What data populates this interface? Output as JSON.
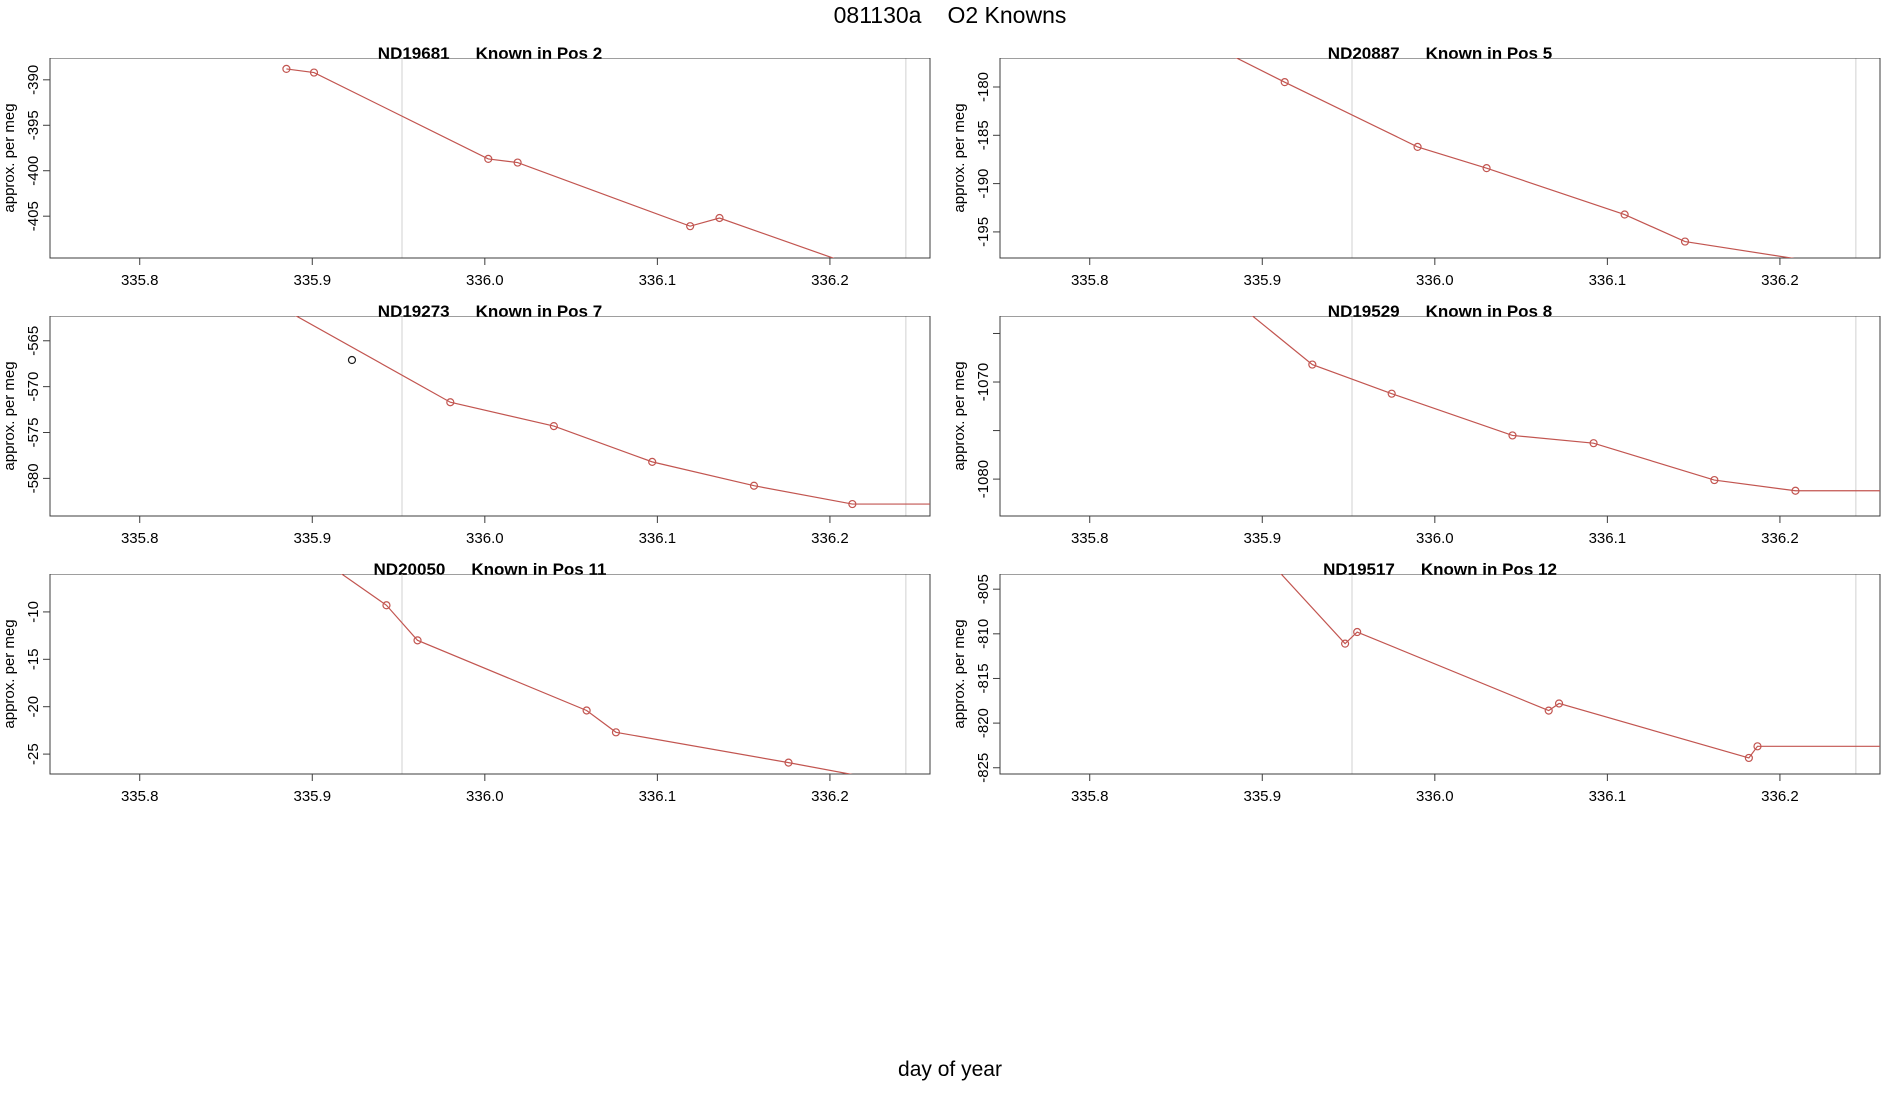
{
  "header": {
    "run_label": "081130a",
    "title": "O2 Knowns"
  },
  "footer": {
    "xlabel": "day of year"
  },
  "chart_data": {
    "type": "line",
    "title": "081130a  O2 Knowns",
    "xlabel": "day of year",
    "ylabel": "approx. per meg",
    "legend": "none",
    "grid": "off",
    "style": {
      "series_color": "#c25550",
      "outlier_color": "#1a1a1a",
      "ref_line_color": "#d8d8d8",
      "box_color": "#3c3c3c",
      "marker": "open-circle"
    },
    "x_axis": {
      "xlim": [
        335.748,
        336.258
      ],
      "ticks": [
        {
          "v": 335.8,
          "label": "335.8"
        },
        {
          "v": 335.9,
          "label": "335.9"
        },
        {
          "v": 336.0,
          "label": "336.0"
        },
        {
          "v": 336.1,
          "label": "336.1"
        },
        {
          "v": 336.2,
          "label": "336.2"
        }
      ]
    },
    "reference_lines_x": [
      335.952,
      336.244
    ],
    "panels": [
      {
        "id": "ND19681",
        "subtitle": "Known in Pos 2",
        "ylabel": "approx. per meg",
        "ylim": [
          -409.6,
          -387.6
        ],
        "yticks": [
          {
            "v": -390,
            "label": "-390"
          },
          {
            "v": -395,
            "label": "-395"
          },
          {
            "v": -400,
            "label": "-400"
          },
          {
            "v": -405,
            "label": "-405"
          }
        ],
        "markers": [
          [
            335.885,
            -388.8
          ],
          [
            335.901,
            -389.2
          ],
          [
            336.002,
            -398.7
          ],
          [
            336.019,
            -399.1
          ],
          [
            336.119,
            -406.1
          ],
          [
            336.136,
            -405.2
          ]
        ],
        "black_markers": [],
        "line": [
          [
            335.885,
            -388.8
          ],
          [
            335.901,
            -389.2
          ],
          [
            336.002,
            -398.7
          ],
          [
            336.019,
            -399.1
          ],
          [
            336.119,
            -406.1
          ],
          [
            336.136,
            -405.2
          ],
          [
            336.26,
            -413.5
          ]
        ]
      },
      {
        "id": "ND20887",
        "subtitle": "Known in Pos 5",
        "ylabel": "approx. per meg",
        "ylim": [
          -197.7,
          -177.0
        ],
        "yticks": [
          {
            "v": -180,
            "label": "-180"
          },
          {
            "v": -185,
            "label": "-185"
          },
          {
            "v": -190,
            "label": "-190"
          },
          {
            "v": -195,
            "label": "-195"
          }
        ],
        "markers": [
          [
            335.913,
            -179.5
          ],
          [
            335.99,
            -186.2
          ],
          [
            336.03,
            -188.4
          ],
          [
            336.11,
            -193.2
          ],
          [
            336.145,
            -196.0
          ]
        ],
        "black_markers": [],
        "line": [
          [
            335.855,
            -174.3
          ],
          [
            335.913,
            -179.5
          ],
          [
            335.99,
            -186.2
          ],
          [
            336.03,
            -188.4
          ],
          [
            336.11,
            -193.2
          ],
          [
            336.145,
            -196.0
          ],
          [
            336.21,
            -197.8
          ],
          [
            336.258,
            -198.3
          ]
        ]
      },
      {
        "id": "ND19273",
        "subtitle": "Known in Pos 7",
        "ylabel": "approx. per meg",
        "ylim": [
          -584.1,
          -562.3
        ],
        "yticks": [
          {
            "v": -565,
            "label": "-565"
          },
          {
            "v": -570,
            "label": "-570"
          },
          {
            "v": -575,
            "label": "-575"
          },
          {
            "v": -580,
            "label": "-580"
          }
        ],
        "markers": [
          [
            335.98,
            -571.7
          ],
          [
            336.04,
            -574.3
          ],
          [
            336.097,
            -578.2
          ],
          [
            336.156,
            -580.8
          ],
          [
            336.213,
            -582.8
          ]
        ],
        "black_markers": [
          [
            335.923,
            -567.1
          ]
        ],
        "line": [
          [
            335.848,
            -557.8
          ],
          [
            335.98,
            -571.7
          ],
          [
            336.04,
            -574.3
          ],
          [
            336.097,
            -578.2
          ],
          [
            336.156,
            -580.8
          ],
          [
            336.213,
            -582.8
          ],
          [
            336.258,
            -582.8
          ]
        ]
      },
      {
        "id": "ND19529",
        "subtitle": "Known in Pos 8",
        "ylabel": "approx. per meg",
        "ylim": [
          -1083.8,
          -1063.2
        ],
        "yticks": [
          {
            "v": -1065,
            "label": ""
          },
          {
            "v": -1070,
            "label": "-1070"
          },
          {
            "v": -1075,
            "label": ""
          },
          {
            "v": -1080,
            "label": "-1080"
          }
        ],
        "markers": [
          [
            335.929,
            -1068.2
          ],
          [
            335.975,
            -1071.2
          ],
          [
            336.045,
            -1075.5
          ],
          [
            336.092,
            -1076.3
          ],
          [
            336.162,
            -1080.1
          ],
          [
            336.209,
            -1081.2
          ]
        ],
        "black_markers": [],
        "line": [
          [
            335.85,
            -1056.8
          ],
          [
            335.929,
            -1068.2
          ],
          [
            335.975,
            -1071.2
          ],
          [
            336.045,
            -1075.5
          ],
          [
            336.092,
            -1076.3
          ],
          [
            336.162,
            -1080.1
          ],
          [
            336.209,
            -1081.2
          ],
          [
            336.258,
            -1081.2
          ]
        ]
      },
      {
        "id": "ND20050",
        "subtitle": "Known in Pos 11",
        "ylabel": "approx. per meg",
        "ylim": [
          -27.1,
          -6.0
        ],
        "yticks": [
          {
            "v": -10,
            "label": "-10"
          },
          {
            "v": -15,
            "label": "-15"
          },
          {
            "v": -20,
            "label": "-20"
          },
          {
            "v": -25,
            "label": "-25"
          }
        ],
        "markers": [
          [
            335.943,
            -9.3
          ],
          [
            335.961,
            -13.0
          ],
          [
            336.059,
            -20.4
          ],
          [
            336.076,
            -22.7
          ],
          [
            336.176,
            -25.9
          ]
        ],
        "black_markers": [],
        "line": [
          [
            335.888,
            -2.3
          ],
          [
            335.943,
            -9.3
          ],
          [
            335.961,
            -13.0
          ],
          [
            336.059,
            -20.4
          ],
          [
            336.076,
            -22.7
          ],
          [
            336.176,
            -25.9
          ],
          [
            336.235,
            -27.9
          ]
        ]
      },
      {
        "id": "ND19517",
        "subtitle": "Known in Pos 12",
        "ylabel": "approx. per meg",
        "ylim": [
          -825.7,
          -803.3
        ],
        "yticks": [
          {
            "v": -805,
            "label": "-805"
          },
          {
            "v": -810,
            "label": "-810"
          },
          {
            "v": -815,
            "label": "-815"
          },
          {
            "v": -820,
            "label": "-820"
          },
          {
            "v": -825,
            "label": "-825"
          }
        ],
        "markers": [
          [
            335.948,
            -811.1
          ],
          [
            335.955,
            -809.8
          ],
          [
            336.066,
            -818.6
          ],
          [
            336.072,
            -817.8
          ],
          [
            336.182,
            -823.9
          ],
          [
            336.187,
            -822.6
          ]
        ],
        "black_markers": [],
        "line": [
          [
            335.862,
            -793.0
          ],
          [
            335.948,
            -811.1
          ],
          [
            335.955,
            -809.8
          ],
          [
            336.066,
            -818.6
          ],
          [
            336.072,
            -817.8
          ],
          [
            336.182,
            -823.9
          ],
          [
            336.187,
            -822.6
          ],
          [
            336.258,
            -822.6
          ]
        ]
      }
    ]
  }
}
